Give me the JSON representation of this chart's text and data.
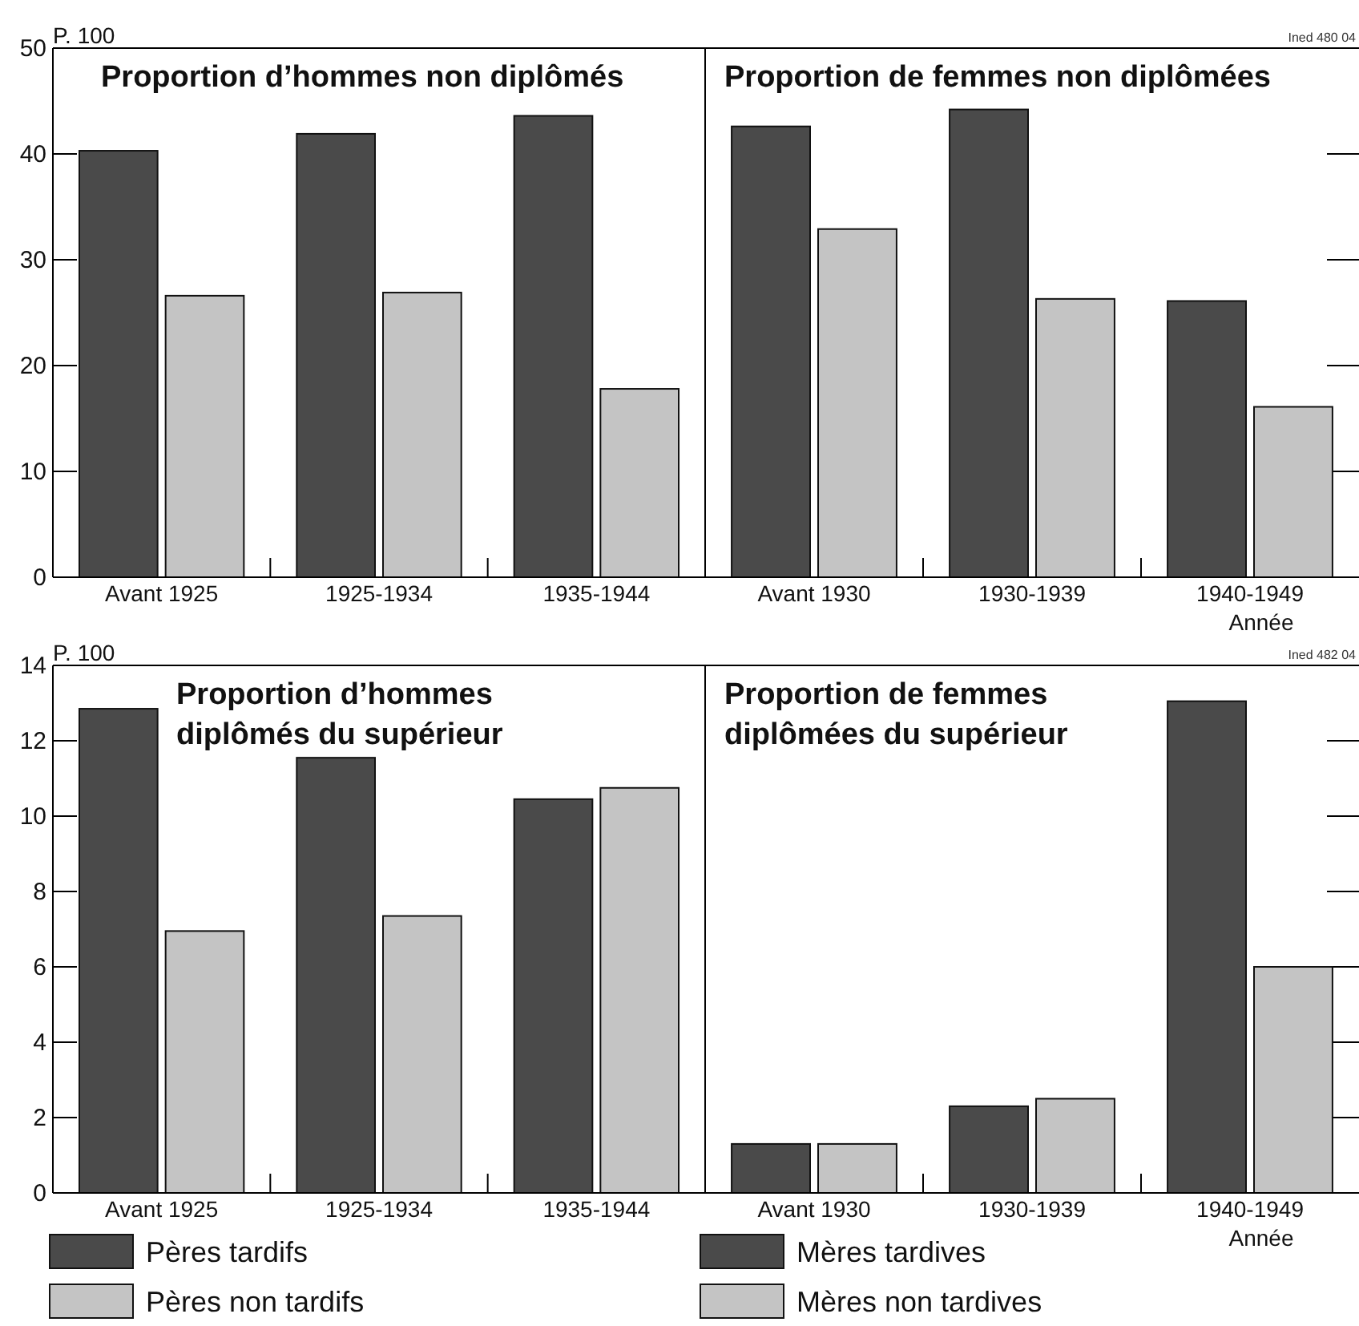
{
  "chart_data": [
    {
      "type": "bar",
      "title": "Proportion d’hommes non diplômés",
      "ylabel": "P. 100",
      "categories": [
        "Avant 1925",
        "1925-1934",
        "1935-1944"
      ],
      "series": [
        {
          "color": "#4a4a4a",
          "values": [
            40.3,
            41.9,
            43.6
          ]
        },
        {
          "color": "#c4c4c4",
          "values": [
            26.6,
            26.9,
            17.8
          ]
        }
      ],
      "ylim": [
        0,
        50
      ],
      "yticks": [
        0,
        10,
        20,
        30,
        40,
        50
      ],
      "grid": false,
      "legend": false
    },
    {
      "type": "bar",
      "title": "Proportion de femmes non diplômées",
      "xlabel": "Année",
      "annotations": [
        "Ined 480 04"
      ],
      "categories": [
        "Avant 1930",
        "1930-1939",
        "1940-1949"
      ],
      "series": [
        {
          "color": "#4a4a4a",
          "values": [
            42.6,
            44.2,
            26.1
          ]
        },
        {
          "color": "#c4c4c4",
          "values": [
            32.9,
            26.3,
            16.1
          ]
        }
      ],
      "ylim": [
        0,
        50
      ],
      "yticks": [
        {
          "value": 10,
          "label": null
        },
        {
          "value": 20,
          "label": null
        },
        {
          "value": 30,
          "label": null
        },
        {
          "value": 40,
          "label": null
        }
      ],
      "tick_labels": "x",
      "grid": false,
      "legend": false
    },
    {
      "type": "bar",
      "title": "Proportion d’hommes\ndiplômés du supérieur",
      "ylabel": "P. 100",
      "categories": [
        "Avant 1925",
        "1925-1934",
        "1935-1944"
      ],
      "series": [
        {
          "name": "Pères tardifs",
          "color": "#4a4a4a",
          "values": [
            12.85,
            11.55,
            10.45
          ]
        },
        {
          "name": "Pères non tardifs",
          "color": "#c4c4c4",
          "values": [
            6.95,
            7.35,
            10.75
          ]
        }
      ],
      "ylim": [
        0,
        14
      ],
      "yticks": [
        0,
        2,
        4,
        6,
        8,
        10,
        12,
        14
      ],
      "grid": false,
      "legend": "bottom"
    },
    {
      "type": "bar",
      "title": "Proportion de femmes\ndiplômées du supérieur",
      "xlabel": "Année",
      "annotations": [
        "Ined 482 04"
      ],
      "categories": [
        "Avant 1930",
        "1930-1939",
        "1940-1949"
      ],
      "series": [
        {
          "name": "Mères tardives",
          "color": "#4a4a4a",
          "values": [
            1.3,
            2.3,
            13.05
          ]
        },
        {
          "name": "Mères non tardives",
          "color": "#c4c4c4",
          "values": [
            1.3,
            2.5,
            6
          ]
        }
      ],
      "ylim": [
        0,
        14
      ],
      "yticks": [
        {
          "value": 2,
          "label": null
        },
        {
          "value": 4,
          "label": null
        },
        {
          "value": 6,
          "label": null
        },
        {
          "value": 8,
          "label": null
        },
        {
          "value": 10,
          "label": null
        },
        {
          "value": 12,
          "label": null
        }
      ],
      "tick_labels": "x",
      "grid": false,
      "legend": "bottom"
    }
  ]
}
